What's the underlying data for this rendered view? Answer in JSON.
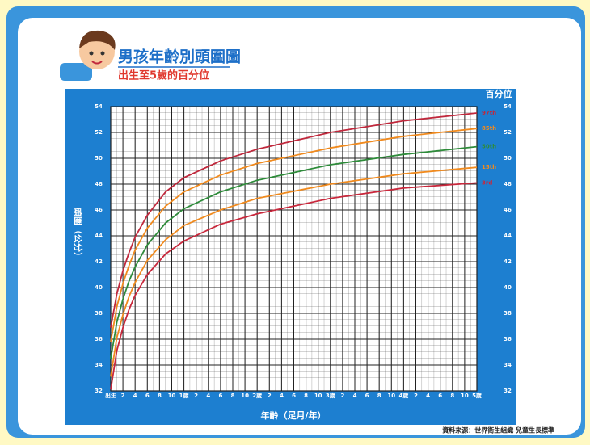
{
  "chart_data": {
    "type": "line",
    "title": "男孩年齡別頭圍圖",
    "subtitle": "出生至5歲的百分位",
    "y_label": "頭圍（公分）",
    "x_label": "年齡（足月/年）",
    "legend_title": "百分位",
    "source": "資料來源：世界衛生組織 兒童生長標準",
    "x": [
      0,
      1,
      2,
      3,
      4,
      6,
      9,
      12,
      18,
      24,
      36,
      48,
      60
    ],
    "series": [
      {
        "name": "97th",
        "color": "#c0283c",
        "values": [
          36.9,
          39.5,
          41.3,
          42.7,
          43.9,
          45.6,
          47.4,
          48.5,
          49.8,
          50.7,
          52.0,
          52.9,
          53.5
        ]
      },
      {
        "name": "85th",
        "color": "#f08a1e",
        "values": [
          35.8,
          38.5,
          40.3,
          41.7,
          42.9,
          44.6,
          46.3,
          47.4,
          48.7,
          49.6,
          50.8,
          51.7,
          52.3
        ]
      },
      {
        "name": "50th",
        "color": "#2e8b3a",
        "values": [
          34.5,
          37.3,
          39.1,
          40.5,
          41.6,
          43.3,
          45.0,
          46.1,
          47.4,
          48.3,
          49.5,
          50.3,
          50.9
        ]
      },
      {
        "name": "15th",
        "color": "#f08a1e",
        "values": [
          33.1,
          36.1,
          37.9,
          39.3,
          40.4,
          42.1,
          43.7,
          44.8,
          46.0,
          46.9,
          48.0,
          48.8,
          49.3
        ]
      },
      {
        "name": "3rd",
        "color": "#c8283c",
        "values": [
          32.1,
          35.1,
          36.9,
          38.3,
          39.4,
          41.0,
          42.6,
          43.6,
          44.9,
          45.7,
          46.9,
          47.7,
          48.1
        ]
      }
    ],
    "xlim": [
      0,
      60
    ],
    "xticks": [
      {
        "value": 0,
        "label": "出生"
      },
      2,
      4,
      6,
      8,
      10,
      {
        "value": 12,
        "label": "1歲"
      },
      {
        "value": 14,
        "label": "2"
      },
      {
        "value": 16,
        "label": "4"
      },
      {
        "value": 18,
        "label": "6"
      },
      {
        "value": 20,
        "label": "8"
      },
      {
        "value": 22,
        "label": "10"
      },
      {
        "value": 24,
        "label": "2歲"
      },
      {
        "value": 26,
        "label": "2"
      },
      {
        "value": 28,
        "label": "4"
      },
      {
        "value": 30,
        "label": "6"
      },
      {
        "value": 32,
        "label": "8"
      },
      {
        "value": 34,
        "label": "10"
      },
      {
        "value": 36,
        "label": "3歲"
      },
      {
        "value": 38,
        "label": "2"
      },
      {
        "value": 40,
        "label": "4"
      },
      {
        "value": 42,
        "label": "6"
      },
      {
        "value": 44,
        "label": "8"
      },
      {
        "value": 46,
        "label": "10"
      },
      {
        "value": 48,
        "label": "4歲"
      },
      {
        "value": 50,
        "label": "2"
      },
      {
        "value": 52,
        "label": "4"
      },
      {
        "value": 54,
        "label": "6"
      },
      {
        "value": 56,
        "label": "8"
      },
      {
        "value": 58,
        "label": "10"
      },
      {
        "value": 60,
        "label": "5歲"
      }
    ],
    "ylim": [
      32,
      54
    ],
    "yticks": [
      32,
      34,
      36,
      38,
      40,
      42,
      44,
      46,
      48,
      50,
      52,
      54
    ],
    "grid": true
  }
}
